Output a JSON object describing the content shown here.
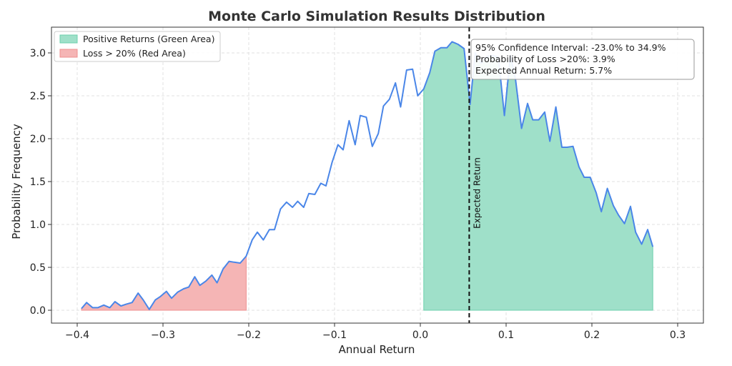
{
  "chart_data": {
    "type": "area",
    "title": "Monte Carlo Simulation Results Distribution",
    "xlabel": "Annual Return",
    "ylabel": "Probability Frequency",
    "xlim": [
      -0.43,
      0.33
    ],
    "ylim": [
      -0.15,
      3.3
    ],
    "x_ticks": [
      -0.4,
      -0.3,
      -0.2,
      -0.1,
      0.0,
      0.1,
      0.2,
      0.3
    ],
    "x_tick_labels": [
      "−0.4",
      "−0.3",
      "−0.2",
      "−0.1",
      "0.0",
      "0.1",
      "0.2",
      "0.3"
    ],
    "y_ticks": [
      0.0,
      0.5,
      1.0,
      1.5,
      2.0,
      2.5,
      3.0
    ],
    "y_tick_labels": [
      "0.0",
      "0.5",
      "1.0",
      "1.5",
      "2.0",
      "2.5",
      "3.0"
    ],
    "grid": true,
    "legend_position": "top-left",
    "colors": {
      "line": "#4a86e8",
      "positive_fill": "#9fe0c9",
      "positive_edge": "#6cd0ad",
      "loss_fill": "#f5b5b5",
      "loss_edge": "#ee8f8f",
      "expected_line": "#111111"
    },
    "series": [
      {
        "values": [
          [
            -0.395,
            0.02
          ],
          [
            -0.389,
            0.09
          ],
          [
            -0.382,
            0.03
          ],
          [
            -0.376,
            0.03
          ],
          [
            -0.369,
            0.06
          ],
          [
            -0.362,
            0.03
          ],
          [
            -0.356,
            0.1
          ],
          [
            -0.349,
            0.05
          ],
          [
            -0.343,
            0.07
          ],
          [
            -0.336,
            0.09
          ],
          [
            -0.329,
            0.2
          ],
          [
            -0.323,
            0.12
          ],
          [
            -0.316,
            0.01
          ],
          [
            -0.309,
            0.12
          ],
          [
            -0.303,
            0.16
          ],
          [
            -0.296,
            0.22
          ],
          [
            -0.29,
            0.14
          ],
          [
            -0.283,
            0.21
          ],
          [
            -0.276,
            0.25
          ],
          [
            -0.27,
            0.27
          ],
          [
            -0.263,
            0.39
          ],
          [
            -0.257,
            0.29
          ],
          [
            -0.25,
            0.34
          ],
          [
            -0.243,
            0.41
          ],
          [
            -0.237,
            0.32
          ],
          [
            -0.23,
            0.48
          ],
          [
            -0.223,
            0.57
          ],
          [
            -0.217,
            0.56
          ],
          [
            -0.21,
            0.55
          ],
          [
            -0.203,
            0.63
          ],
          [
            -0.196,
            0.82
          ],
          [
            -0.19,
            0.91
          ],
          [
            -0.183,
            0.82
          ],
          [
            -0.176,
            0.94
          ],
          [
            -0.17,
            0.94
          ],
          [
            -0.163,
            1.18
          ],
          [
            -0.156,
            1.26
          ],
          [
            -0.149,
            1.2
          ],
          [
            -0.143,
            1.27
          ],
          [
            -0.136,
            1.2
          ],
          [
            -0.13,
            1.36
          ],
          [
            -0.123,
            1.35
          ],
          [
            -0.116,
            1.48
          ],
          [
            -0.11,
            1.45
          ],
          [
            -0.103,
            1.72
          ],
          [
            -0.096,
            1.93
          ],
          [
            -0.09,
            1.87
          ],
          [
            -0.083,
            2.21
          ],
          [
            -0.076,
            1.93
          ],
          [
            -0.07,
            2.27
          ],
          [
            -0.063,
            2.25
          ],
          [
            -0.056,
            1.91
          ],
          [
            -0.049,
            2.06
          ],
          [
            -0.043,
            2.38
          ],
          [
            -0.036,
            2.46
          ],
          [
            -0.029,
            2.65
          ],
          [
            -0.023,
            2.37
          ],
          [
            -0.016,
            2.8
          ],
          [
            -0.009,
            2.81
          ],
          [
            -0.003,
            2.5
          ],
          [
            0.004,
            2.58
          ],
          [
            0.011,
            2.77
          ],
          [
            0.017,
            3.02
          ],
          [
            0.024,
            3.06
          ],
          [
            0.031,
            3.06
          ],
          [
            0.037,
            3.13
          ],
          [
            0.044,
            3.1
          ],
          [
            0.051,
            3.05
          ],
          [
            0.058,
            2.4
          ],
          [
            0.064,
            3.0
          ],
          [
            0.071,
            2.88
          ],
          [
            0.078,
            2.96
          ],
          [
            0.085,
            2.97
          ],
          [
            0.091,
            2.95
          ],
          [
            0.098,
            2.27
          ],
          [
            0.105,
            2.97
          ],
          [
            0.111,
            2.69
          ],
          [
            0.118,
            2.12
          ],
          [
            0.125,
            2.41
          ],
          [
            0.131,
            2.22
          ],
          [
            0.138,
            2.22
          ],
          [
            0.145,
            2.31
          ],
          [
            0.151,
            1.97
          ],
          [
            0.158,
            2.37
          ],
          [
            0.165,
            1.9
          ],
          [
            0.171,
            1.9
          ],
          [
            0.178,
            1.91
          ],
          [
            0.185,
            1.67
          ],
          [
            0.191,
            1.55
          ],
          [
            0.198,
            1.55
          ],
          [
            0.205,
            1.37
          ],
          [
            0.211,
            1.15
          ],
          [
            0.218,
            1.42
          ],
          [
            0.225,
            1.22
          ],
          [
            0.231,
            1.11
          ],
          [
            0.238,
            1.01
          ],
          [
            0.245,
            1.21
          ],
          [
            0.251,
            0.91
          ],
          [
            0.258,
            0.77
          ],
          [
            0.265,
            0.94
          ],
          [
            0.271,
            0.74
          ]
        ]
      }
    ],
    "loss_threshold": -0.2,
    "positive_threshold": 0.0,
    "expected_return": 0.057,
    "expected_line_label": "Expected Return",
    "legend": [
      {
        "label": "Positive Returns (Green Area)",
        "color": "#9fe0c9",
        "edge": "#6cd0ad"
      },
      {
        "label": "Loss > 20% (Red Area)",
        "color": "#f5b5b5",
        "edge": "#ee8f8f"
      }
    ],
    "info_box": [
      "95% Confidence Interval: -23.0% to 34.9%",
      "Probability of Loss >20%: 3.9%",
      "Expected Annual Return: 5.7%"
    ]
  }
}
